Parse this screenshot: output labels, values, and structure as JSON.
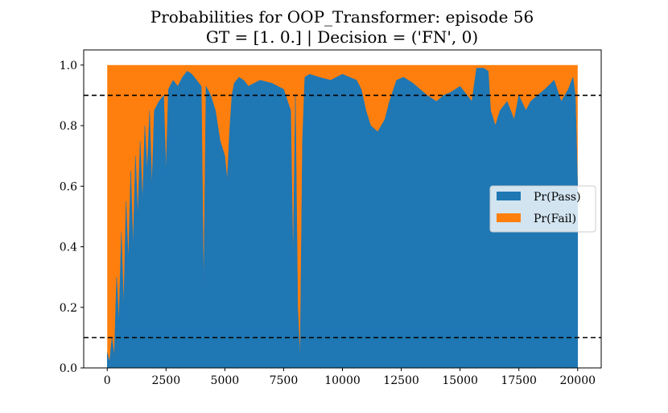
{
  "chart_data": {
    "type": "area",
    "title": "Probabilities for OOP_Transformer: episode 56",
    "subtitle": "GT = [1. 0.] | Decision = ('FN', 0)",
    "xlabel": "",
    "ylabel": "",
    "xlim": [
      -1000,
      21000
    ],
    "ylim": [
      0.0,
      1.05
    ],
    "xticks": [
      "0",
      "2500",
      "5000",
      "7500",
      "10000",
      "12500",
      "15000",
      "17500",
      "20000"
    ],
    "yticks": [
      "0.0",
      "0.2",
      "0.4",
      "0.6",
      "0.8",
      "1.0"
    ],
    "thresholds": [
      0.9,
      0.1
    ],
    "threshold_style": "dashed black",
    "grid": false,
    "legend_position": "center-right",
    "colors": {
      "pass": "#1f77b4",
      "fail": "#ff7f0e",
      "threshold": "#000000"
    },
    "series": [
      {
        "name": "Pr(Pass)",
        "x": [
          0,
          100,
          200,
          300,
          400,
          500,
          600,
          700,
          800,
          900,
          1000,
          1100,
          1200,
          1300,
          1400,
          1500,
          1600,
          1700,
          1800,
          1900,
          2000,
          2200,
          2400,
          2500,
          2600,
          2800,
          3000,
          3200,
          3400,
          3600,
          3800,
          4000,
          4100,
          4200,
          4400,
          4600,
          4800,
          5000,
          5100,
          5200,
          5300,
          5400,
          5600,
          5800,
          6000,
          6500,
          7000,
          7500,
          7800,
          7900,
          8000,
          8100,
          8200,
          8300,
          8400,
          8600,
          9000,
          9500,
          10000,
          10300,
          10600,
          10800,
          11000,
          11200,
          11500,
          11800,
          12000,
          12300,
          12600,
          13000,
          13300,
          13600,
          14000,
          14300,
          14600,
          15000,
          15300,
          15500,
          15700,
          16000,
          16200,
          16300,
          16500,
          16700,
          17000,
          17300,
          17500,
          17800,
          18000,
          18300,
          18600,
          19000,
          19300,
          19600,
          19800,
          19900,
          20000
        ],
        "values": [
          0.05,
          0.02,
          0.1,
          0.04,
          0.3,
          0.15,
          0.45,
          0.2,
          0.55,
          0.35,
          0.65,
          0.4,
          0.7,
          0.5,
          0.75,
          0.55,
          0.8,
          0.65,
          0.85,
          0.6,
          0.85,
          0.88,
          0.9,
          0.65,
          0.92,
          0.95,
          0.93,
          0.96,
          0.98,
          0.97,
          0.95,
          0.93,
          0.25,
          0.93,
          0.9,
          0.85,
          0.75,
          0.7,
          0.62,
          0.78,
          0.9,
          0.94,
          0.96,
          0.95,
          0.93,
          0.95,
          0.94,
          0.92,
          0.85,
          0.35,
          0.9,
          0.2,
          0.03,
          0.75,
          0.96,
          0.97,
          0.96,
          0.95,
          0.97,
          0.96,
          0.95,
          0.92,
          0.85,
          0.8,
          0.78,
          0.82,
          0.88,
          0.95,
          0.96,
          0.94,
          0.92,
          0.9,
          0.88,
          0.9,
          0.91,
          0.93,
          0.9,
          0.88,
          0.99,
          0.99,
          0.98,
          0.85,
          0.8,
          0.85,
          0.88,
          0.82,
          0.9,
          0.85,
          0.88,
          0.9,
          0.92,
          0.95,
          0.88,
          0.92,
          0.96,
          0.9,
          0.6
        ]
      },
      {
        "name": "Pr(Fail)",
        "note_values_are_complement": true,
        "values_stacked_top": 1.0
      }
    ]
  }
}
